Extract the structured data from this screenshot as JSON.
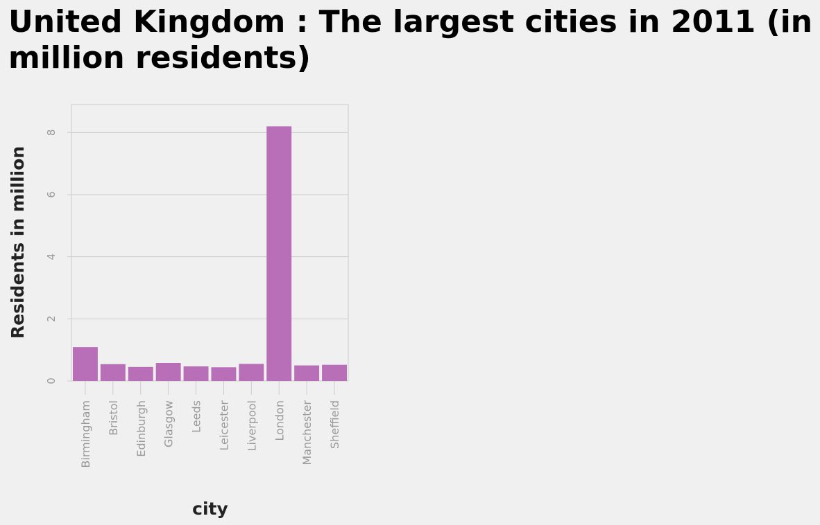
{
  "chart_data": {
    "type": "bar",
    "title": "United Kingdom : The largest cities in 2011 (in million residents)",
    "xlabel": "city",
    "ylabel": "Residents in million",
    "categories": [
      "Birmingham",
      "Bristol",
      "Edinburgh",
      "Glasgow",
      "Leeds",
      "Leicester",
      "Liverpool",
      "London",
      "Manchester",
      "Sheffield"
    ],
    "values": [
      1.09,
      0.54,
      0.45,
      0.58,
      0.47,
      0.44,
      0.55,
      8.2,
      0.5,
      0.52
    ],
    "ylim": [
      0,
      8.9
    ],
    "yticks": [
      "0",
      "2",
      "4",
      "6",
      "8"
    ],
    "grid": true,
    "bar_color": "#b86fb8"
  }
}
